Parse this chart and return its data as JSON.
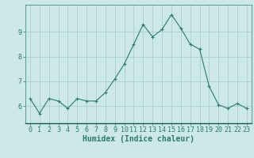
{
  "x": [
    0,
    1,
    2,
    3,
    4,
    5,
    6,
    7,
    8,
    9,
    10,
    11,
    12,
    13,
    14,
    15,
    16,
    17,
    18,
    19,
    20,
    21,
    22,
    23
  ],
  "y": [
    6.3,
    5.7,
    6.3,
    6.2,
    5.9,
    6.3,
    6.2,
    6.2,
    6.55,
    7.1,
    7.7,
    8.5,
    9.3,
    8.8,
    9.1,
    9.7,
    9.15,
    8.5,
    8.3,
    6.8,
    6.05,
    5.9,
    6.1,
    5.9
  ],
  "xlabel": "Humidex (Indice chaleur)",
  "ylim": [
    5.3,
    10.1
  ],
  "yticks": [
    6,
    7,
    8,
    9
  ],
  "xticks": [
    0,
    1,
    2,
    3,
    4,
    5,
    6,
    7,
    8,
    9,
    10,
    11,
    12,
    13,
    14,
    15,
    16,
    17,
    18,
    19,
    20,
    21,
    22,
    23
  ],
  "line_color": "#2d7a6e",
  "marker": "+",
  "bg_color": "#cce8e8",
  "grid_color": "#aacfcf",
  "xlabel_fontsize": 7,
  "tick_fontsize": 6,
  "xlabel_fontweight": "bold"
}
